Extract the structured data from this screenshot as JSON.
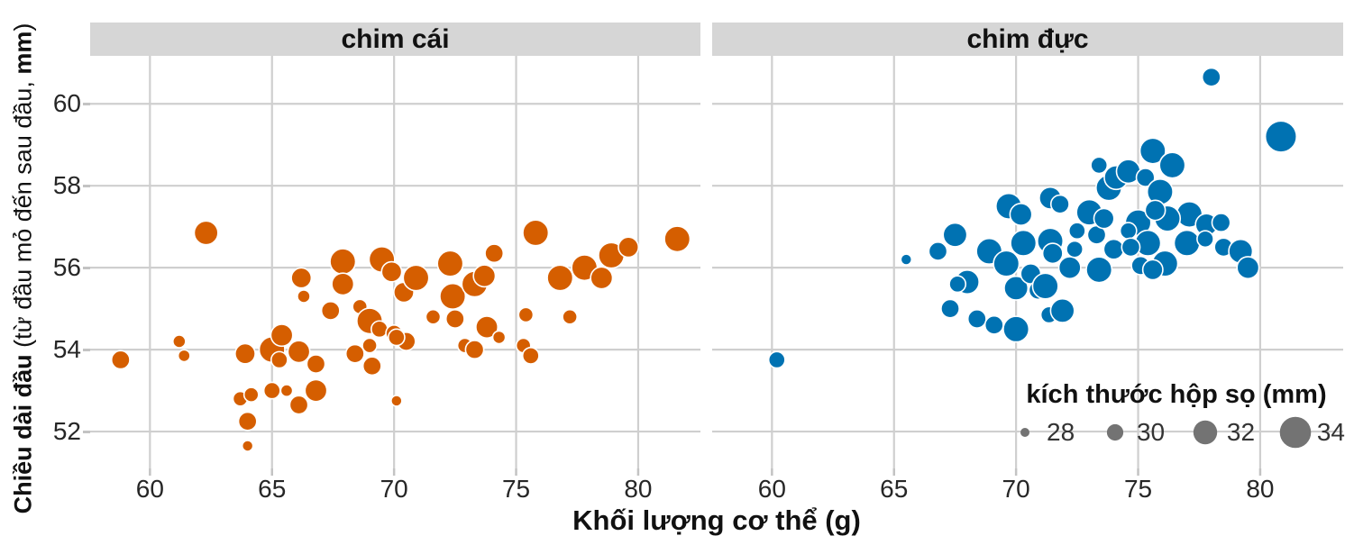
{
  "chart_data": {
    "type": "scatter",
    "title": "",
    "xlabel": "Khối lượng cơ thể (g)",
    "ylabel": "Chiều dài đầu (từ đầu mỏ đến sau đầu, mm)",
    "ylabel_parts": {
      "bold1": "Chiều dài đầu",
      "normal1": " (từ đầu mỏ đến sau đầu, ",
      "bold2": "mm",
      "normal2": ")"
    },
    "x_ticks": [
      60,
      65,
      70,
      75,
      80
    ],
    "y_ticks": [
      52,
      54,
      56,
      58,
      60
    ],
    "ylim": [
      51.1,
      61.17
    ],
    "grid": true,
    "point_size_mapping": "skull size 28mm→r5px, 30→9, 32→13.3, 34→17.3",
    "facets": [
      {
        "label": "chim cái",
        "color": "#D55E00",
        "xlim": [
          57.55,
          82.55
        ],
        "points": [
          [
            58.8,
            53.75,
            30.5
          ],
          [
            61.2,
            54.2,
            29
          ],
          [
            61.4,
            53.85,
            28.8
          ],
          [
            62.3,
            56.85,
            32
          ],
          [
            63.9,
            53.9,
            31
          ],
          [
            63.7,
            52.8,
            29.5
          ],
          [
            64.15,
            52.9,
            29.5
          ],
          [
            64.0,
            52.25,
            30.5
          ],
          [
            64.0,
            51.65,
            28.5
          ],
          [
            65.0,
            54.0,
            32.5
          ],
          [
            65.3,
            53.75,
            30
          ],
          [
            65.4,
            54.35,
            31.5
          ],
          [
            66.1,
            53.95,
            31.5
          ],
          [
            66.8,
            53.65,
            30.5
          ],
          [
            65.0,
            53.0,
            30
          ],
          [
            65.6,
            53.0,
            28.8
          ],
          [
            66.1,
            52.65,
            30.5
          ],
          [
            66.8,
            53.0,
            31.5
          ],
          [
            66.2,
            55.75,
            31
          ],
          [
            66.3,
            55.3,
            29
          ],
          [
            67.4,
            54.95,
            30.5
          ],
          [
            67.9,
            56.15,
            32.5
          ],
          [
            67.9,
            55.6,
            31.5
          ],
          [
            68.6,
            55.05,
            29.5
          ],
          [
            69.0,
            54.7,
            32.5
          ],
          [
            69.4,
            54.5,
            30
          ],
          [
            70.0,
            54.4,
            30
          ],
          [
            70.5,
            54.2,
            30.5
          ],
          [
            69.5,
            56.2,
            32.5
          ],
          [
            69.9,
            55.9,
            31
          ],
          [
            70.4,
            55.4,
            31
          ],
          [
            70.9,
            55.75,
            32.5
          ],
          [
            68.4,
            53.9,
            30.5
          ],
          [
            69.0,
            54.1,
            29.5
          ],
          [
            69.1,
            53.6,
            30.5
          ],
          [
            70.1,
            54.3,
            30
          ],
          [
            70.1,
            52.75,
            28.5
          ],
          [
            71.6,
            54.8,
            29.5
          ],
          [
            72.3,
            56.1,
            32.5
          ],
          [
            72.4,
            55.3,
            32.5
          ],
          [
            72.5,
            54.75,
            30.5
          ],
          [
            72.9,
            54.1,
            29.5
          ],
          [
            73.3,
            54.0,
            30.5
          ],
          [
            73.3,
            55.6,
            32.5
          ],
          [
            73.7,
            55.8,
            31.5
          ],
          [
            74.1,
            56.35,
            30.5
          ],
          [
            73.8,
            54.55,
            31.5
          ],
          [
            74.3,
            54.3,
            29
          ],
          [
            75.4,
            54.85,
            29.5
          ],
          [
            75.3,
            54.1,
            29.5
          ],
          [
            75.6,
            53.85,
            30
          ],
          [
            75.8,
            56.85,
            32.5
          ],
          [
            76.8,
            55.75,
            32.5
          ],
          [
            77.2,
            54.8,
            29.5
          ],
          [
            77.8,
            56.0,
            32.5
          ],
          [
            78.5,
            55.75,
            31.5
          ],
          [
            78.9,
            56.3,
            32.5
          ],
          [
            79.6,
            56.5,
            31
          ],
          [
            81.6,
            56.7,
            32.5
          ]
        ]
      },
      {
        "label": "chim đực",
        "color": "#0072B2",
        "xlim": [
          57.55,
          83.4
        ],
        "points": [
          [
            60.2,
            53.75,
            30
          ],
          [
            65.5,
            56.2,
            28.5
          ],
          [
            66.8,
            56.4,
            30.5
          ],
          [
            67.5,
            56.8,
            32
          ],
          [
            68.0,
            55.65,
            32
          ],
          [
            67.6,
            55.6,
            30
          ],
          [
            67.3,
            55.0,
            30.5
          ],
          [
            68.4,
            54.75,
            30.5
          ],
          [
            69.1,
            54.6,
            30.5
          ],
          [
            70.0,
            54.5,
            32.5
          ],
          [
            68.9,
            56.4,
            32.5
          ],
          [
            69.6,
            56.1,
            32.5
          ],
          [
            69.7,
            57.5,
            32.5
          ],
          [
            70.2,
            57.3,
            31.5
          ],
          [
            70.3,
            56.6,
            32.5
          ],
          [
            70.0,
            55.5,
            32
          ],
          [
            70.6,
            55.85,
            31
          ],
          [
            70.9,
            55.45,
            30.5
          ],
          [
            71.2,
            55.55,
            32.5
          ],
          [
            71.35,
            54.85,
            30
          ],
          [
            71.9,
            54.95,
            32
          ],
          [
            71.4,
            57.7,
            31.5
          ],
          [
            71.8,
            57.55,
            30.5
          ],
          [
            71.4,
            56.65,
            32.5
          ],
          [
            71.5,
            56.35,
            31
          ],
          [
            72.2,
            56.0,
            31.5
          ],
          [
            72.5,
            56.9,
            30
          ],
          [
            73.3,
            56.8,
            30.5
          ],
          [
            73.4,
            55.95,
            32.5
          ],
          [
            74.0,
            56.45,
            31
          ],
          [
            73.0,
            57.35,
            32.5
          ],
          [
            73.8,
            57.95,
            32.5
          ],
          [
            74.1,
            58.2,
            32
          ],
          [
            75.6,
            58.85,
            32.5
          ],
          [
            76.4,
            58.5,
            32.5
          ],
          [
            74.6,
            58.35,
            32
          ],
          [
            75.3,
            58.2,
            30.5
          ],
          [
            75.9,
            57.85,
            32.5
          ],
          [
            77.1,
            57.3,
            32.5
          ],
          [
            76.2,
            57.2,
            32.5
          ],
          [
            75.0,
            57.1,
            32.5
          ],
          [
            74.6,
            56.9,
            30
          ],
          [
            75.4,
            56.6,
            32.5
          ],
          [
            77.0,
            56.6,
            32.5
          ],
          [
            77.8,
            57.05,
            31.5
          ],
          [
            78.4,
            57.1,
            30.5
          ],
          [
            77.75,
            56.7,
            30
          ],
          [
            76.1,
            56.1,
            32.5
          ],
          [
            75.1,
            56.05,
            30.5
          ],
          [
            75.6,
            55.95,
            31
          ],
          [
            78.5,
            56.5,
            30.5
          ],
          [
            79.2,
            56.4,
            32
          ],
          [
            79.5,
            56.0,
            31.5
          ],
          [
            78.0,
            60.65,
            30.5
          ],
          [
            80.85,
            59.2,
            34
          ],
          [
            73.6,
            57.2,
            31
          ],
          [
            75.7,
            57.4,
            31
          ],
          [
            74.7,
            56.5,
            30.5
          ],
          [
            72.4,
            56.45,
            30
          ],
          [
            73.4,
            58.5,
            30
          ]
        ]
      }
    ],
    "size_legend": {
      "title": "kích thước hộp sọ (mm)",
      "circle_color": "#737373",
      "entries": [
        {
          "label": "28",
          "size": 28
        },
        {
          "label": "30",
          "size": 30
        },
        {
          "label": "32",
          "size": 32
        },
        {
          "label": "34",
          "size": 34
        }
      ],
      "position": "bottom-right inside male panel"
    },
    "legend_position_note": "grid on, white background, gray facet strips"
  },
  "colors": {
    "female_points": "#D55E00",
    "male_points": "#0072B2",
    "facet_strip": "#d6d6d6",
    "gridline": "#cfcfcf",
    "legend_circles": "#737373",
    "text": "#111111"
  }
}
